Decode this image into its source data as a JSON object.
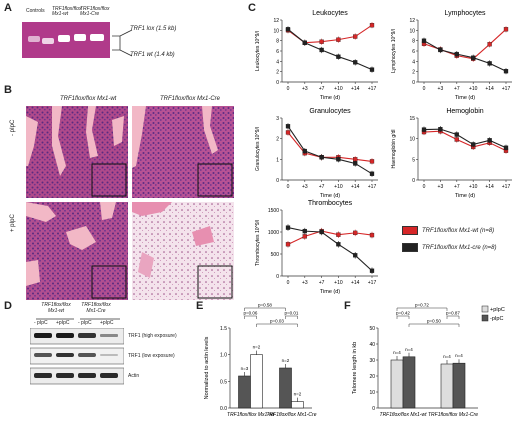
{
  "panels": {
    "A": {
      "label": "A",
      "lanes": [
        "Controls",
        "TRF1flox/flox Mx1-wt",
        "TRF1flox/flox Mx1-Cre"
      ],
      "band_top": "TRF1 lox (1.5 kb)",
      "band_bottom": "TRF1 wt (1.4 kb)"
    },
    "B": {
      "label": "B",
      "col1": "TRF1flox/flox Mx1-wt",
      "col2": "TRF1flox/flox Mx1-Cre",
      "row1": "- pIpC",
      "row2": "+ pIpC"
    },
    "C": {
      "label": "C"
    },
    "D": {
      "label": "D",
      "group1": "TRF1flox/flox Mx1-wt",
      "group2": "TRF1flox/flox Mx1-Cre",
      "lanes": [
        "- pIpC",
        "+pIpC",
        "- pIpC",
        "+pIpC"
      ],
      "rows": [
        "TRF1 (high exposure)",
        "TRF1 (low exposure)",
        "Actin"
      ]
    },
    "E": {
      "label": "E"
    },
    "F": {
      "label": "F"
    }
  },
  "chart_data": [
    {
      "id": "leukocytes",
      "type": "line",
      "title": "Leukocytes",
      "ylabel": "Leukocytes 10^9/l",
      "xlabel": "Time (d)",
      "x": [
        "0",
        "+3",
        "+7",
        "+10",
        "+14",
        "+17"
      ],
      "ylim": [
        0,
        12
      ],
      "yticks": [
        "0",
        "2",
        "4",
        "6",
        "8",
        "10",
        "12"
      ],
      "series": [
        {
          "name": "TRF1flox/flox Mx1-wt (n=8)",
          "color": "#d62728",
          "values": [
            10.0,
            7.6,
            7.8,
            8.2,
            8.8,
            11.0
          ]
        },
        {
          "name": "TRF1flox/flox Mx1-cre (n=8)",
          "color": "#222222",
          "values": [
            10.2,
            7.6,
            6.2,
            4.9,
            3.8,
            2.4
          ]
        }
      ]
    },
    {
      "id": "lymphocytes",
      "type": "line",
      "title": "Lymphocytes",
      "ylabel": "Lymphocytes 10^9/l",
      "xlabel": "Time (d)",
      "x": [
        "0",
        "+3",
        "+7",
        "+10",
        "+14",
        "+17"
      ],
      "ylim": [
        0,
        12
      ],
      "yticks": [
        "0",
        "2",
        "4",
        "6",
        "8",
        "10",
        "12"
      ],
      "series": [
        {
          "name": "TRF1flox/flox Mx1-wt (n=8)",
          "color": "#d62728",
          "values": [
            7.4,
            6.3,
            5.1,
            4.5,
            7.3,
            10.2
          ]
        },
        {
          "name": "TRF1flox/flox Mx1-cre (n=8)",
          "color": "#222222",
          "values": [
            8.0,
            6.2,
            5.4,
            4.7,
            3.6,
            2.1
          ]
        }
      ]
    },
    {
      "id": "granulocytes",
      "type": "line",
      "title": "Granulocytes",
      "ylabel": "Granulocytes 10^9/l",
      "xlabel": "Time (d)",
      "x": [
        "0",
        "+3",
        "+7",
        "+10",
        "+14",
        "+17"
      ],
      "ylim": [
        0,
        3
      ],
      "yticks": [
        "0",
        "1",
        "2",
        "3"
      ],
      "series": [
        {
          "name": "TRF1flox/flox Mx1-wt (n=8)",
          "color": "#d62728",
          "values": [
            2.3,
            1.3,
            1.1,
            1.1,
            1.0,
            0.9
          ]
        },
        {
          "name": "TRF1flox/flox Mx1-cre (n=8)",
          "color": "#222222",
          "values": [
            2.6,
            1.4,
            1.1,
            1.0,
            0.8,
            0.3
          ]
        }
      ]
    },
    {
      "id": "hemoglobin",
      "type": "line",
      "title": "Hemoglobin",
      "ylabel": "Haemoglobin g/dl",
      "xlabel": "Time (d)",
      "x": [
        "0",
        "+3",
        "+7",
        "+10",
        "+14",
        "+17"
      ],
      "ylim": [
        0,
        15
      ],
      "yticks": [
        "0",
        "5",
        "10",
        "15"
      ],
      "series": [
        {
          "name": "TRF1flox/flox Mx1-wt (n=8)",
          "color": "#d62728",
          "values": [
            11.6,
            11.8,
            9.8,
            8.0,
            9.0,
            7.1
          ]
        },
        {
          "name": "TRF1flox/flox Mx1-cre (n=8)",
          "color": "#222222",
          "values": [
            12.2,
            12.3,
            11.0,
            8.6,
            9.6,
            7.8
          ]
        }
      ]
    },
    {
      "id": "thrombocytes",
      "type": "line",
      "title": "Thrombocytes",
      "ylabel": "Thrombocytes 10^9/l",
      "xlabel": "Time (d)",
      "x": [
        "0",
        "+3",
        "+7",
        "+10",
        "+14",
        "+17"
      ],
      "ylim": [
        0,
        1500
      ],
      "yticks": [
        "0",
        "500",
        "1000",
        "1500"
      ],
      "series": [
        {
          "name": "TRF1flox/flox Mx1-wt (n=8)",
          "color": "#d62728",
          "values": [
            720,
            900,
            1020,
            940,
            980,
            930
          ]
        },
        {
          "name": "TRF1flox/flox Mx1-cre (n=8)",
          "color": "#222222",
          "values": [
            1100,
            1020,
            1000,
            720,
            470,
            120
          ]
        }
      ]
    },
    {
      "id": "actin-normalized",
      "type": "bar",
      "ylabel": "Normalized to actin levels",
      "categories": [
        "TRF1flox/flox Mx1-wt",
        "TRF1flox/flox Mx1-Cre"
      ],
      "ylim": [
        0,
        1.5
      ],
      "yticks": [
        "0.0",
        "0.5",
        "1.0",
        "1.5"
      ],
      "series": [
        {
          "name": "-pIpC",
          "color": "#555555",
          "values": [
            0.6,
            0.75
          ]
        },
        {
          "name": "+pIpC",
          "color": "#ffffff",
          "values": [
            1.0,
            0.12
          ]
        }
      ],
      "n_labels": [
        "n=3",
        "n=2",
        "n=2",
        "n=2"
      ],
      "annotations": [
        "p=0.58",
        "p=0.06",
        "p=0.01",
        "p=0.03"
      ]
    },
    {
      "id": "telomere-length",
      "type": "bar",
      "ylabel": "Telomere length in kb",
      "categories": [
        "TRF1flox/flox Mx1-wt",
        "TRF1flox/flox Mx1-Cre"
      ],
      "ylim": [
        0,
        50
      ],
      "yticks": [
        "0",
        "10",
        "20",
        "30",
        "40",
        "50"
      ],
      "series": [
        {
          "name": "+pIpC",
          "color": "#dddddd",
          "values": [
            30,
            27.5
          ]
        },
        {
          "name": "-pIpC",
          "color": "#555555",
          "values": [
            32,
            28
          ]
        }
      ],
      "n_labels": [
        "n=4",
        "n=4",
        "n=4",
        "n=4"
      ],
      "annotations": [
        "p=0.72",
        "p=0.42",
        "p=0.87",
        "p=0.50"
      ]
    }
  ],
  "legend_C": [
    {
      "label": "TRF1flox/flox Mx1-wt (n=8)",
      "color": "#d62728"
    },
    {
      "label": "TRF1flox/flox Mx1-cre (n=8)",
      "color": "#222222"
    }
  ]
}
